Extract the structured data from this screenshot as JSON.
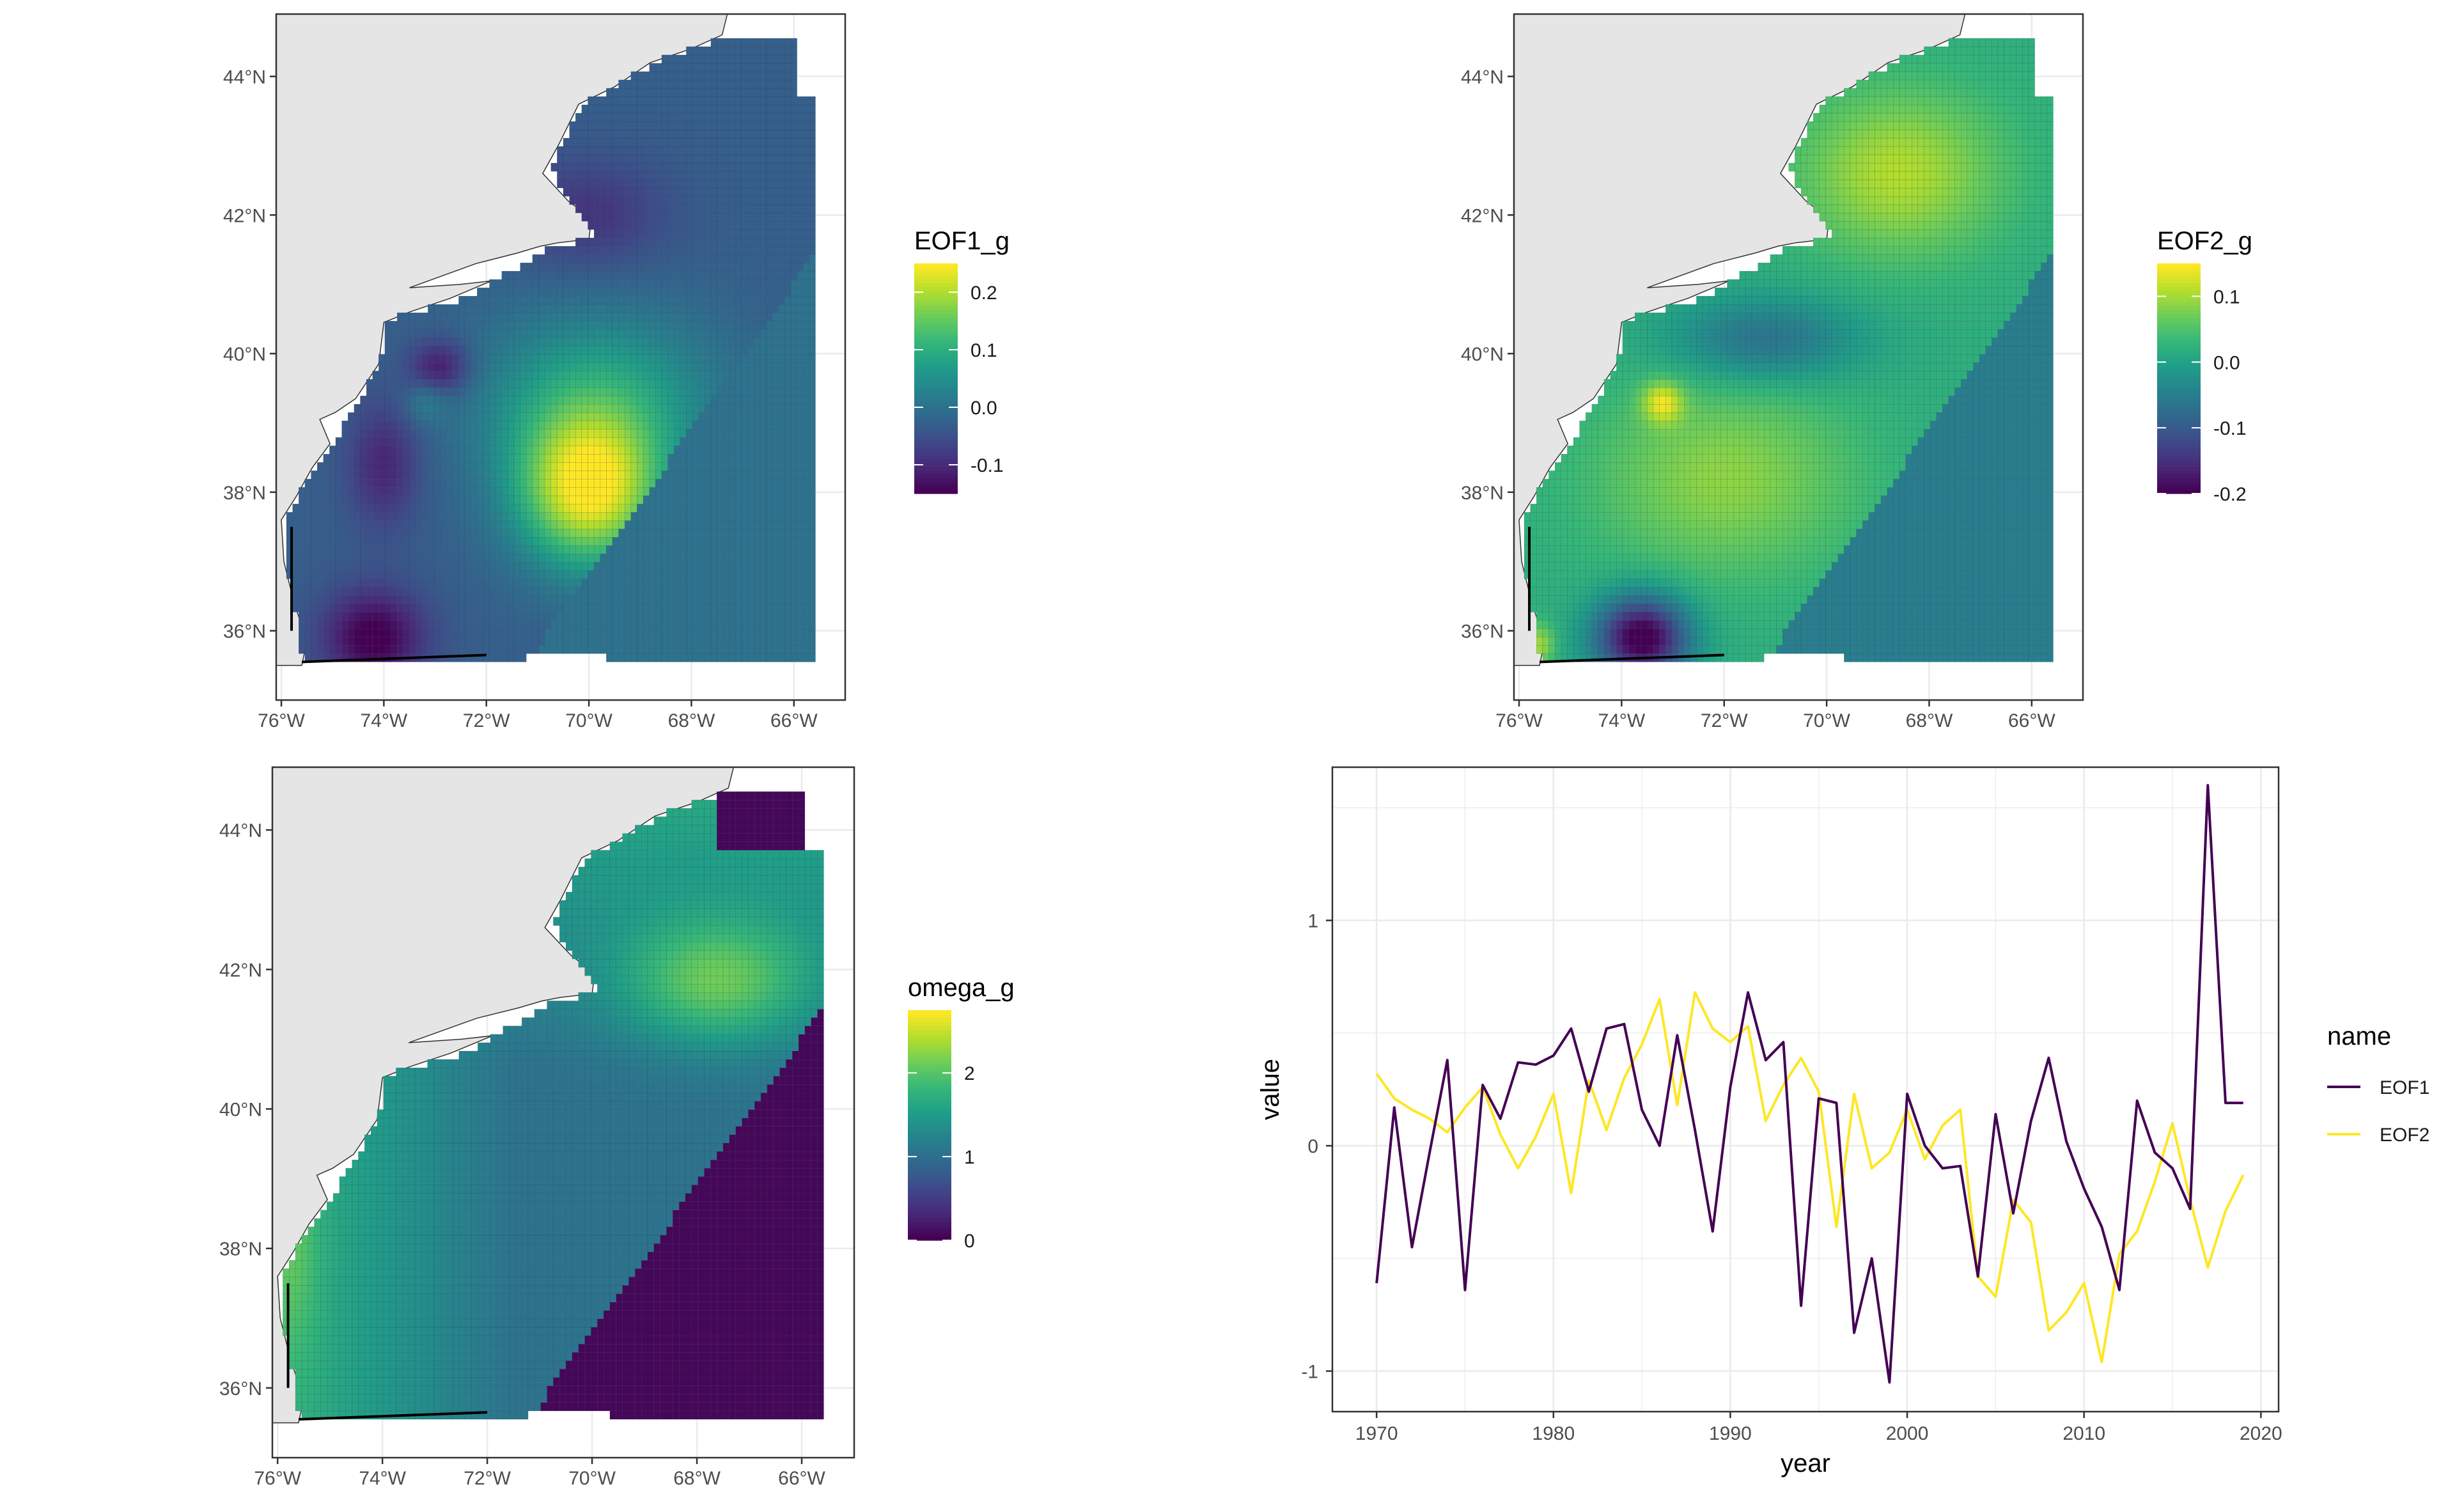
{
  "colors": {
    "viridis": [
      "#440154",
      "#482878",
      "#3E4A89",
      "#31688E",
      "#26828E",
      "#1F9E89",
      "#35B779",
      "#6DCD59",
      "#B4DE2C",
      "#FDE725"
    ],
    "land": "#E5E5E5",
    "grid": "#EBEBEB",
    "axis_text": "#4D4D4D",
    "eof1_line": "#440154",
    "eof2_line": "#FDE725"
  },
  "chart_data": [
    {
      "id": "map_eof1",
      "type": "heatmap",
      "title": "",
      "legend_title": "EOF1_g",
      "legend_ticks": [
        "0.2",
        "0.1",
        "0.0",
        "-0.1"
      ],
      "legend_tick_values": [
        0.2,
        0.1,
        0.0,
        -0.1
      ],
      "value_range": [
        -0.15,
        0.25
      ],
      "lat_ticks": [
        "44°N",
        "42°N",
        "40°N",
        "38°N",
        "36°N"
      ],
      "lat_values": [
        44,
        42,
        40,
        38,
        36
      ],
      "lon_ticks": [
        "76°W",
        "74°W",
        "72°W",
        "70°W",
        "68°W",
        "66°W"
      ],
      "lon_values": [
        -76,
        -74,
        -72,
        -70,
        -68,
        -66
      ],
      "lon_range": [
        -76.1,
        -65.0
      ],
      "lat_range": [
        35.0,
        44.9
      ]
    },
    {
      "id": "map_eof2",
      "type": "heatmap",
      "title": "",
      "legend_title": "EOF2_g",
      "legend_ticks": [
        "0.1",
        "0.0",
        "-0.1",
        "-0.2"
      ],
      "legend_tick_values": [
        0.1,
        0.0,
        -0.1,
        -0.2
      ],
      "value_range": [
        -0.2,
        0.15
      ],
      "lat_ticks": [
        "44°N",
        "42°N",
        "40°N",
        "38°N",
        "36°N"
      ],
      "lat_values": [
        44,
        42,
        40,
        38,
        36
      ],
      "lon_ticks": [
        "76°W",
        "74°W",
        "72°W",
        "70°W",
        "68°W",
        "66°W"
      ],
      "lon_values": [
        -76,
        -74,
        -72,
        -70,
        -68,
        -66
      ],
      "lon_range": [
        -76.1,
        -65.0
      ],
      "lat_range": [
        35.0,
        44.9
      ]
    },
    {
      "id": "map_omega",
      "type": "heatmap",
      "title": "",
      "legend_title": "omega_g",
      "legend_ticks": [
        "2",
        "1",
        "0"
      ],
      "legend_tick_values": [
        2,
        1,
        0
      ],
      "value_range": [
        0,
        2.75
      ],
      "lat_ticks": [
        "44°N",
        "42°N",
        "40°N",
        "38°N",
        "36°N"
      ],
      "lat_values": [
        44,
        42,
        40,
        38,
        36
      ],
      "lon_ticks": [
        "76°W",
        "74°W",
        "72°W",
        "70°W",
        "68°W",
        "66°W"
      ],
      "lon_values": [
        -76,
        -74,
        -72,
        -70,
        -68,
        -66
      ],
      "lon_range": [
        -76.1,
        -65.0
      ],
      "lat_range": [
        35.0,
        44.9
      ]
    },
    {
      "id": "line_ts",
      "type": "line",
      "title": "",
      "xlabel": "year",
      "ylabel": "value",
      "xlim": [
        1967.5,
        2021
      ],
      "ylim": [
        -1.18,
        1.68
      ],
      "x_ticks": [
        1970,
        1980,
        1990,
        2000,
        2010,
        2020
      ],
      "y_ticks": [
        -1,
        0,
        1
      ],
      "legend_title": "name",
      "x": [
        1970,
        1971,
        1972,
        1973,
        1974,
        1975,
        1976,
        1977,
        1978,
        1979,
        1980,
        1981,
        1982,
        1983,
        1984,
        1985,
        1986,
        1987,
        1988,
        1989,
        1990,
        1991,
        1992,
        1993,
        1994,
        1995,
        1996,
        1997,
        1998,
        1999,
        2000,
        2001,
        2002,
        2003,
        2004,
        2005,
        2006,
        2007,
        2008,
        2009,
        2010,
        2011,
        2012,
        2013,
        2014,
        2015,
        2016,
        2017,
        2018,
        2019
      ],
      "series": [
        {
          "name": "EOF1",
          "values": [
            -0.61,
            0.17,
            -0.45,
            -0.03,
            0.38,
            -0.64,
            0.27,
            0.12,
            0.37,
            0.36,
            0.4,
            0.52,
            0.24,
            0.52,
            0.54,
            0.16,
            0.0,
            0.49,
            0.07,
            -0.38,
            0.26,
            0.68,
            0.38,
            0.46,
            -0.71,
            0.21,
            0.19,
            -0.83,
            -0.5,
            -1.05,
            0.23,
            0.0,
            -0.1,
            -0.09,
            -0.58,
            0.14,
            -0.3,
            0.11,
            0.39,
            0.02,
            -0.19,
            -0.36,
            -0.64,
            0.2,
            -0.03,
            -0.1,
            -0.28,
            1.6,
            0.19,
            0.19
          ]
        },
        {
          "name": "EOF2",
          "values": [
            0.32,
            0.21,
            0.16,
            0.12,
            0.06,
            0.17,
            0.26,
            0.05,
            -0.1,
            0.04,
            0.23,
            -0.21,
            0.29,
            0.07,
            0.3,
            0.45,
            0.65,
            0.18,
            0.68,
            0.52,
            0.46,
            0.53,
            0.11,
            0.27,
            0.39,
            0.24,
            -0.36,
            0.23,
            -0.1,
            -0.03,
            0.16,
            -0.06,
            0.09,
            0.16,
            -0.58,
            -0.67,
            -0.24,
            -0.34,
            -0.82,
            -0.74,
            -0.61,
            -0.96,
            -0.48,
            -0.38,
            -0.16,
            0.1,
            -0.24,
            -0.54,
            -0.29,
            -0.13
          ]
        }
      ]
    }
  ]
}
